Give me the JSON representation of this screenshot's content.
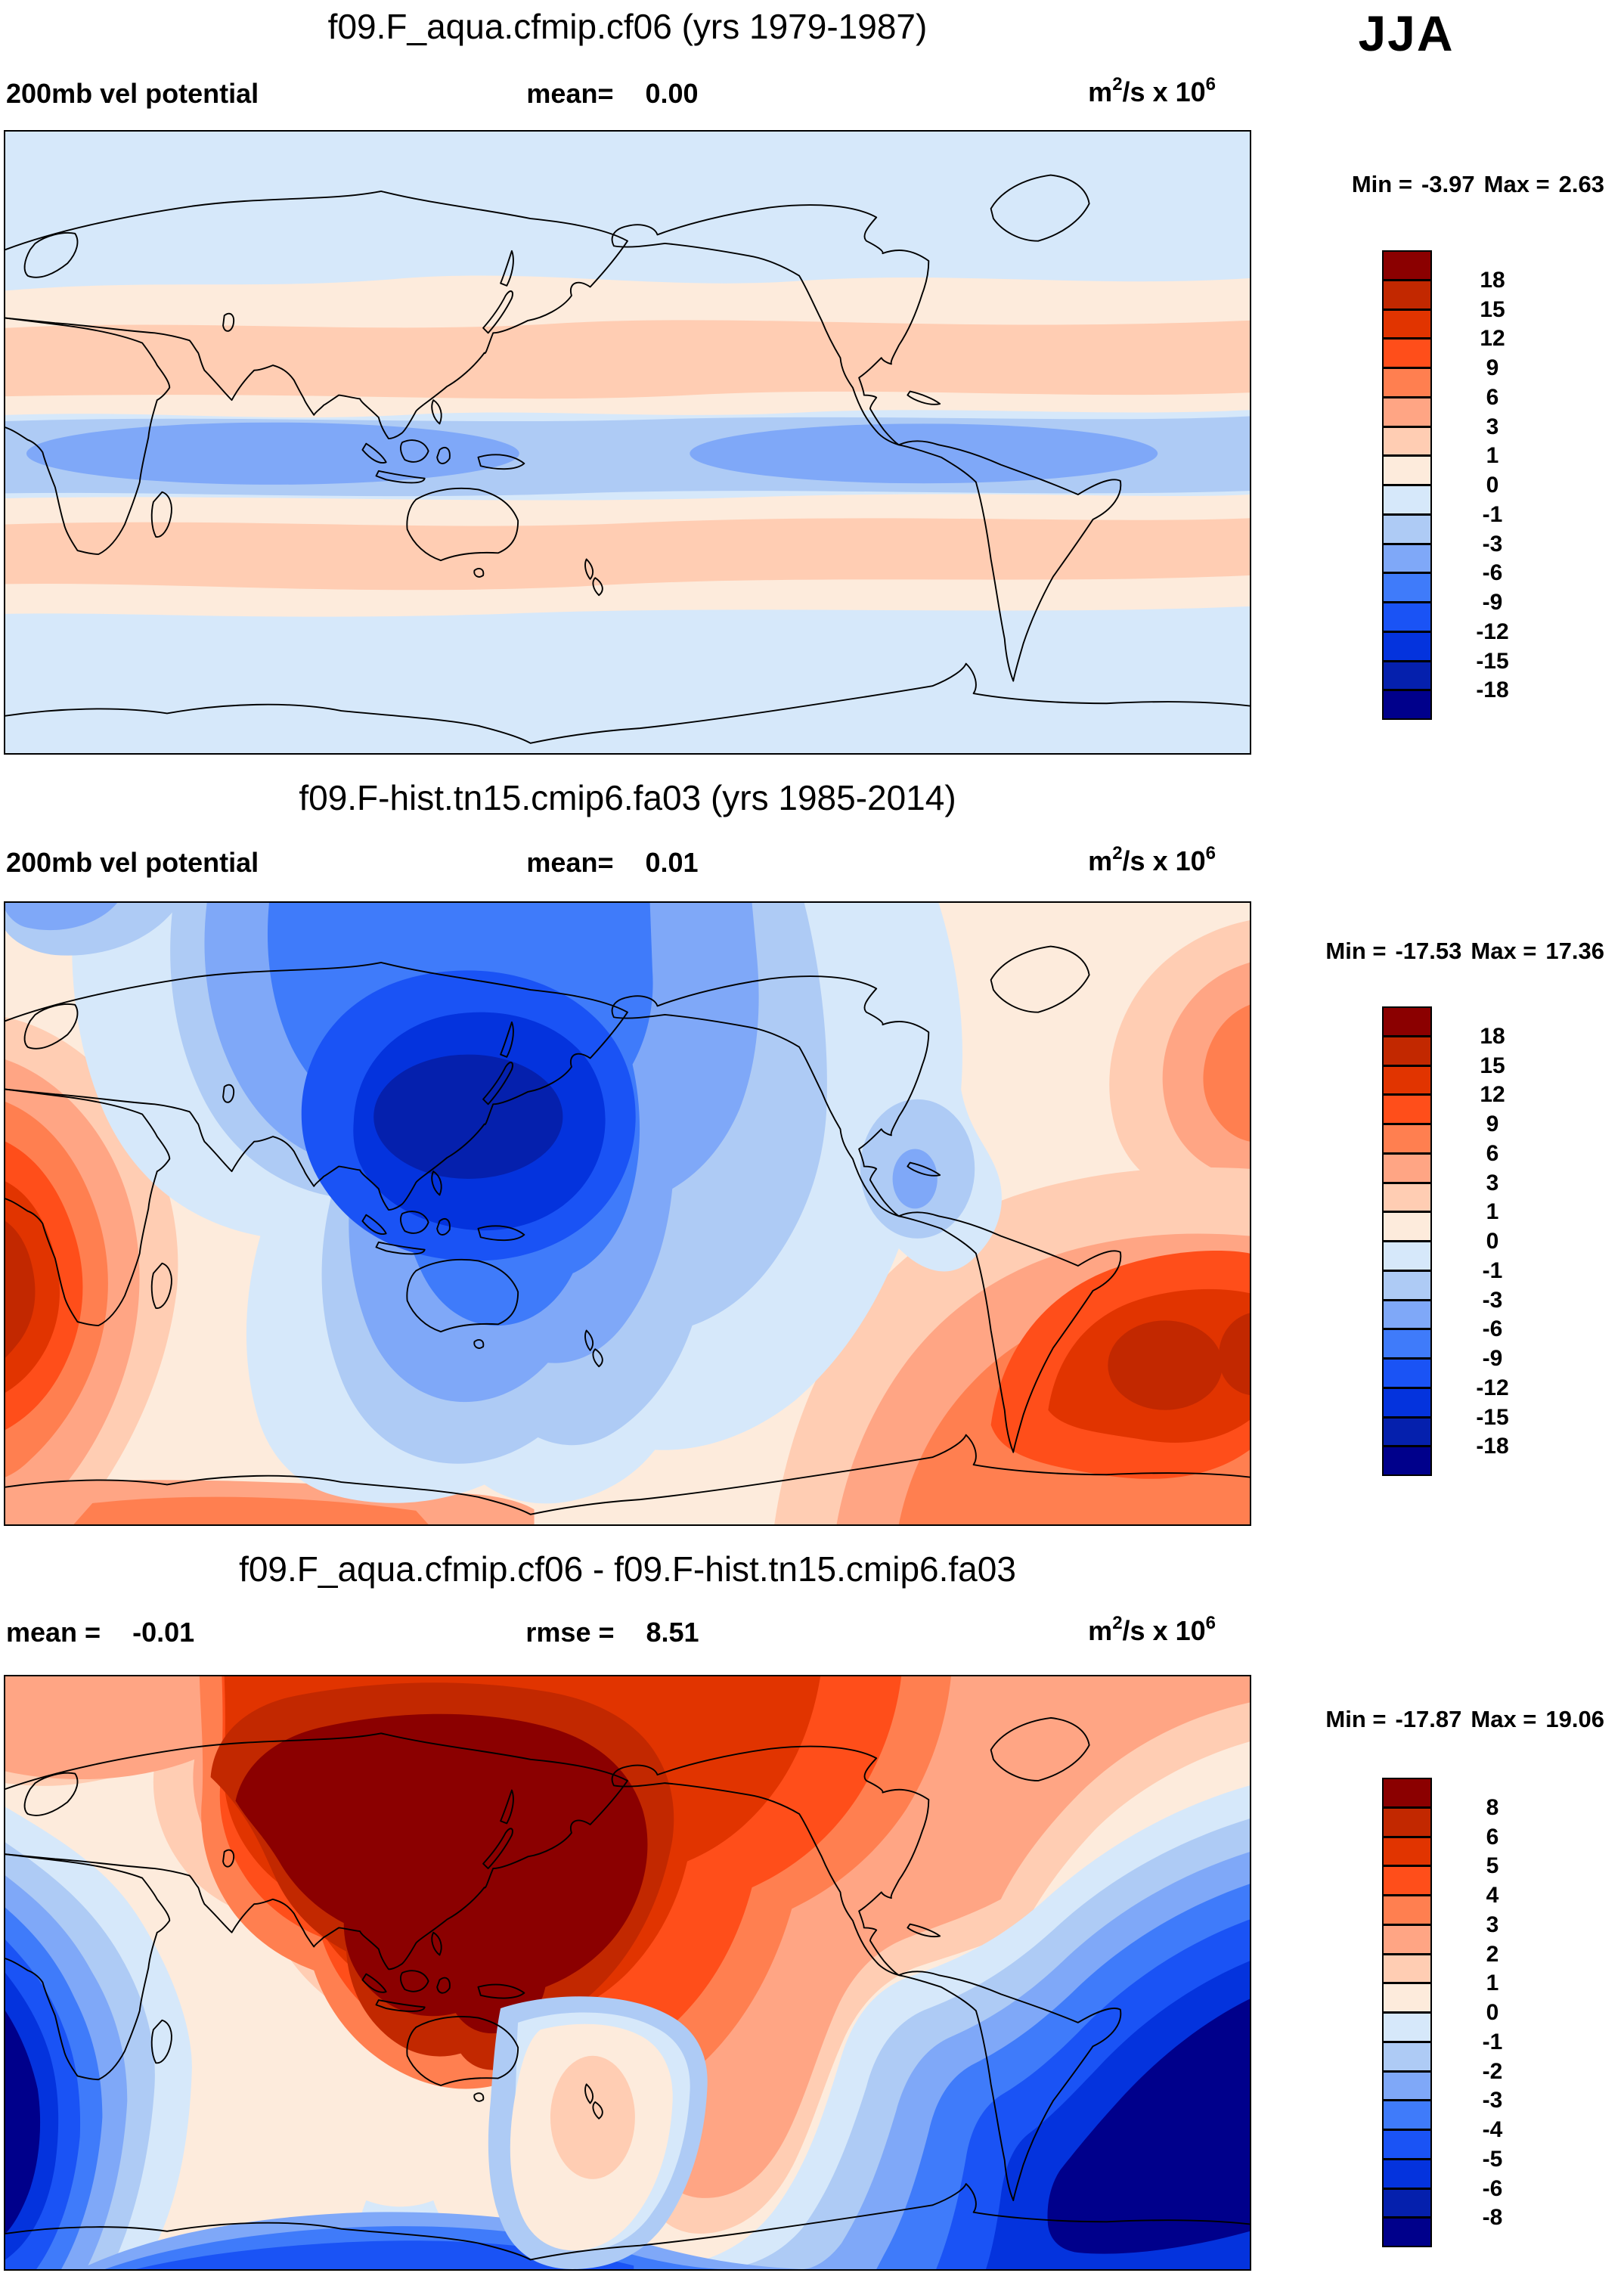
{
  "season": "JJA",
  "units": {
    "base": "m",
    "sup1": "2",
    "rest": "/s x 10",
    "sup2": "6"
  },
  "palette": [
    "#8B0000",
    "#C22800",
    "#E13400",
    "#FF4E1A",
    "#FF7F50",
    "#FFA584",
    "#FFCDB3",
    "#FDEBDC",
    "#D6E8FA",
    "#AECBF5",
    "#7FA8F8",
    "#3F7BFA",
    "#1A53F5",
    "#0433DD",
    "#0520AD",
    "#00008B"
  ],
  "panels": [
    {
      "title": "f09.F_aqua.cfmip.cf06 (yrs 1979-1987)",
      "left": {
        "label": "200mb vel potential",
        "value": ""
      },
      "center": {
        "label": "mean=",
        "value": "0.00"
      },
      "minmax": {
        "min_label": "Min =",
        "min_value": "-3.97",
        "max_label": "Max =",
        "max_value": "2.63"
      },
      "colorbar": {
        "labels": [
          "18",
          "15",
          "12",
          "9",
          "6",
          "3",
          "1",
          "0",
          "-1",
          "-3",
          "-6",
          "-9",
          "-12",
          "-15",
          "-18"
        ],
        "colors": [
          "#8B0000",
          "#C22800",
          "#E13400",
          "#FF4E1A",
          "#FF7F50",
          "#FFA584",
          "#FFCDB3",
          "#FDEBDC",
          "#D6E8FA",
          "#AECBF5",
          "#7FA8F8",
          "#3F7BFA",
          "#1A53F5",
          "#0433DD",
          "#0520AD",
          "#00008B"
        ]
      }
    },
    {
      "title": "f09.F-hist.tn15.cmip6.fa03 (yrs 1985-2014)",
      "left": {
        "label": "200mb vel potential",
        "value": ""
      },
      "center": {
        "label": "mean=",
        "value": "0.01"
      },
      "minmax": {
        "min_label": "Min =",
        "min_value": "-17.53",
        "max_label": "Max =",
        "max_value": "17.36"
      },
      "colorbar": {
        "labels": [
          "18",
          "15",
          "12",
          "9",
          "6",
          "3",
          "1",
          "0",
          "-1",
          "-3",
          "-6",
          "-9",
          "-12",
          "-15",
          "-18"
        ],
        "colors": [
          "#8B0000",
          "#C22800",
          "#E13400",
          "#FF4E1A",
          "#FF7F50",
          "#FFA584",
          "#FFCDB3",
          "#FDEBDC",
          "#D6E8FA",
          "#AECBF5",
          "#7FA8F8",
          "#3F7BFA",
          "#1A53F5",
          "#0433DD",
          "#0520AD",
          "#00008B"
        ]
      }
    },
    {
      "title": "f09.F_aqua.cfmip.cf06 - f09.F-hist.tn15.cmip6.fa03",
      "left": {
        "label": "mean =",
        "value": "-0.01"
      },
      "center": {
        "label": "rmse =",
        "value": "8.51"
      },
      "minmax": {
        "min_label": "Min =",
        "min_value": "-17.87",
        "max_label": "Max =",
        "max_value": "19.06"
      },
      "colorbar": {
        "labels": [
          "8",
          "6",
          "5",
          "4",
          "3",
          "2",
          "1",
          "0",
          "-1",
          "-2",
          "-3",
          "-4",
          "-5",
          "-6",
          "-8"
        ],
        "colors": [
          "#8B0000",
          "#C22800",
          "#E13400",
          "#FF4E1A",
          "#FF7F50",
          "#FFA584",
          "#FFCDB3",
          "#FDEBDC",
          "#D6E8FA",
          "#AECBF5",
          "#7FA8F8",
          "#3F7BFA",
          "#1A53F5",
          "#0433DD",
          "#0520AD",
          "#00008B"
        ]
      }
    }
  ],
  "chart_data": [
    {
      "type": "heatmap",
      "subtype": "filled-contour world map, equirectangular, Pacific-centered (0E-360E)",
      "title": "f09.F_aqua.cfmip.cf06 (yrs 1979-1987)",
      "variable": "200mb vel potential",
      "season": "JJA",
      "units": "m2/s x 10^6",
      "mean": 0.0,
      "min": -3.97,
      "max": 2.63,
      "contour_levels": [
        -18,
        -15,
        -12,
        -9,
        -6,
        -3,
        -1,
        0,
        1,
        3,
        6,
        9,
        12,
        15,
        18
      ],
      "legend_position": "right",
      "pattern": "zonally banded: weak negative band (-1 to -6) along equator with minima near -4 over Indian/west Pacific and east Pacific, positive subtropical bands (1 to 3) in both hemispheres near 25-45 deg, near-zero pale values poleward"
    },
    {
      "type": "heatmap",
      "subtype": "filled-contour world map, equirectangular, Pacific-centered (0E-360E)",
      "title": "f09.F-hist.tn15.cmip6.fa03 (yrs 1985-2014)",
      "variable": "200mb vel potential",
      "season": "JJA",
      "units": "m2/s x 10^6",
      "mean": 0.01,
      "min": -17.53,
      "max": 17.36,
      "contour_levels": [
        -18,
        -15,
        -12,
        -9,
        -6,
        -3,
        -1,
        0,
        1,
        3,
        6,
        9,
        12,
        15,
        18
      ],
      "legend_position": "right",
      "pattern": "strong negative center (below -15) over south/east Asia and west Pacific extending to Australia, strong positive centers (above 15) over Africa/Atlantic at the left edge and over South America/South Atlantic on the right, positive band along southern high latitudes"
    },
    {
      "type": "heatmap",
      "subtype": "filled-contour difference map, equirectangular, Pacific-centered (0E-360E)",
      "title": "f09.F_aqua.cfmip.cf06 - f09.F-hist.tn15.cmip6.fa03",
      "variable": "200mb vel potential difference",
      "season": "JJA",
      "units": "m2/s x 10^6",
      "mean": -0.01,
      "rmse": 8.51,
      "min": -17.87,
      "max": 19.06,
      "contour_levels": [
        -8,
        -6,
        -5,
        -4,
        -3,
        -2,
        -1,
        0,
        1,
        2,
        3,
        4,
        5,
        6,
        8
      ],
      "legend_position": "right",
      "pattern": "large positive difference (above 8, dark red) covering Asia and the northwest Pacific down to Australia, strong negative difference (below -8, dark blue) over the Indian/Atlantic sector at left and over South America/Atlantic at right, pale near-zero column south of Australia"
    }
  ]
}
